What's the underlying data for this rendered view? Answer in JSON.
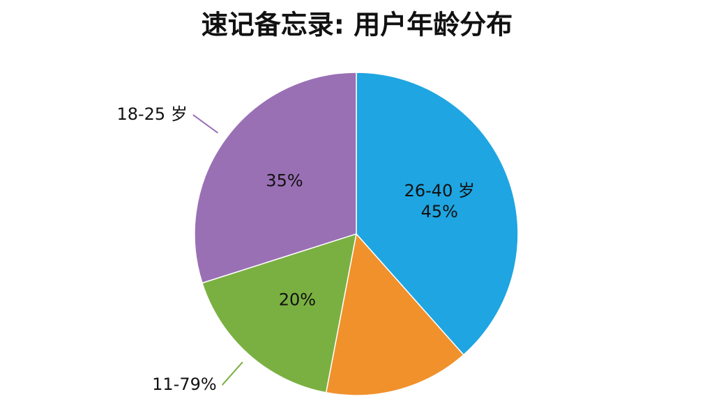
{
  "chart_data": {
    "type": "pie",
    "title": "速记备忘录: 用户年龄分布",
    "categories": [
      "26-40 岁",
      null,
      "11-79%",
      "18-25 岁"
    ],
    "values": [
      45,
      17,
      20,
      35
    ],
    "value_labels": [
      "45%",
      null,
      "20%",
      "35%"
    ],
    "colors": [
      "#1ea5e2",
      "#f0912c",
      "#7ab041",
      "#9a70b5"
    ]
  }
}
